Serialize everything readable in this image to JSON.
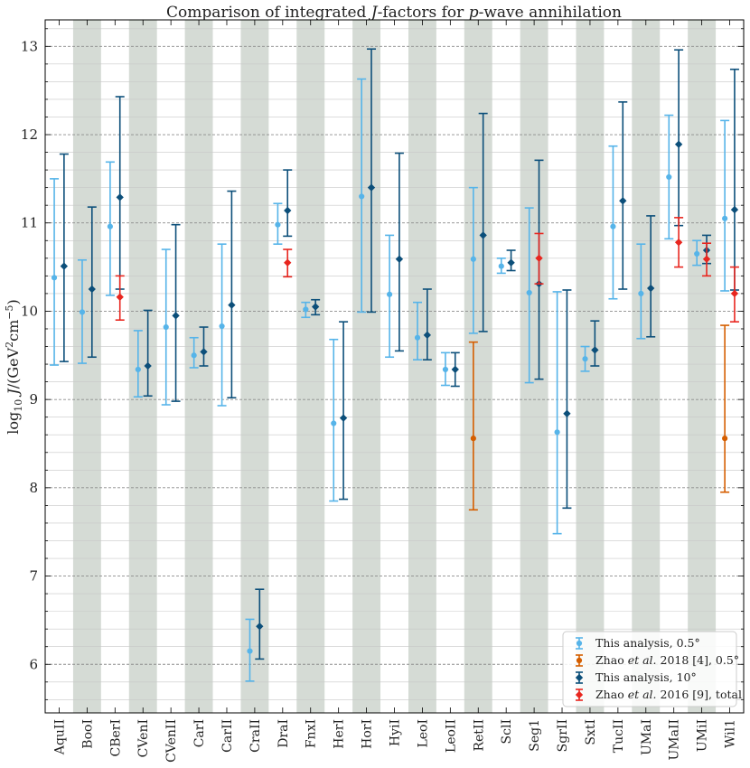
{
  "chart_data": {
    "type": "errorbar",
    "title": "Comparison of integrated J-factors for p-wave annihilation",
    "ylabel": "log10 J/(GeV^2 cm^-5)",
    "xlabel": "",
    "ylim": [
      5.45,
      13.3
    ],
    "yticks": [
      6,
      7,
      8,
      9,
      10,
      11,
      12,
      13
    ],
    "grid": true,
    "legend_position": "bottom-right",
    "categories": [
      "AquII",
      "BooI",
      "CBerI",
      "CVenI",
      "CVenII",
      "CarI",
      "CarII",
      "CraII",
      "DraI",
      "FnxI",
      "HerI",
      "HorI",
      "HyiI",
      "LeoI",
      "LeoII",
      "RetII",
      "SclI",
      "Seg1",
      "SgrII",
      "SxtI",
      "TucII",
      "UMaI",
      "UMaII",
      "UMiI",
      "Wil1"
    ],
    "series": [
      {
        "name": "This analysis, 0.5°",
        "color": "#56b4e9",
        "marker": "circle",
        "points": [
          {
            "x": "AquII",
            "y": 10.38,
            "lo": 9.39,
            "hi": 11.5
          },
          {
            "x": "BooI",
            "y": 9.99,
            "lo": 9.41,
            "hi": 10.58
          },
          {
            "x": "CBerI",
            "y": 10.96,
            "lo": 10.18,
            "hi": 11.69
          },
          {
            "x": "CVenI",
            "y": 9.34,
            "lo": 9.03,
            "hi": 9.78
          },
          {
            "x": "CVenII",
            "y": 9.82,
            "lo": 8.94,
            "hi": 10.7
          },
          {
            "x": "CarI",
            "y": 9.5,
            "lo": 9.36,
            "hi": 9.7
          },
          {
            "x": "CarII",
            "y": 9.83,
            "lo": 8.93,
            "hi": 10.76
          },
          {
            "x": "CraII",
            "y": 6.15,
            "lo": 5.81,
            "hi": 6.51
          },
          {
            "x": "DraI",
            "y": 10.98,
            "lo": 10.76,
            "hi": 11.22
          },
          {
            "x": "FnxI",
            "y": 10.02,
            "lo": 9.93,
            "hi": 10.1
          },
          {
            "x": "HerI",
            "y": 8.73,
            "lo": 7.85,
            "hi": 9.68
          },
          {
            "x": "HorI",
            "y": 11.3,
            "lo": 9.99,
            "hi": 12.63
          },
          {
            "x": "HyiI",
            "y": 10.19,
            "lo": 9.48,
            "hi": 10.86
          },
          {
            "x": "LeoI",
            "y": 9.7,
            "lo": 9.45,
            "hi": 10.1
          },
          {
            "x": "LeoII",
            "y": 9.34,
            "lo": 9.16,
            "hi": 9.53
          },
          {
            "x": "RetII",
            "y": 10.59,
            "lo": 9.75,
            "hi": 11.4
          },
          {
            "x": "SclI",
            "y": 10.51,
            "lo": 10.43,
            "hi": 10.6
          },
          {
            "x": "Seg1",
            "y": 10.21,
            "lo": 9.19,
            "hi": 11.17
          },
          {
            "x": "SgrII",
            "y": 8.63,
            "lo": 7.48,
            "hi": 10.22
          },
          {
            "x": "SxtI",
            "y": 9.46,
            "lo": 9.32,
            "hi": 9.6
          },
          {
            "x": "TucII",
            "y": 10.96,
            "lo": 10.14,
            "hi": 11.87
          },
          {
            "x": "UMaI",
            "y": 10.2,
            "lo": 9.69,
            "hi": 10.76
          },
          {
            "x": "UMaII",
            "y": 11.52,
            "lo": 10.82,
            "hi": 12.22
          },
          {
            "x": "UMiI",
            "y": 10.65,
            "lo": 10.52,
            "hi": 10.8
          },
          {
            "x": "Wil1",
            "y": 11.05,
            "lo": 10.23,
            "hi": 12.16
          }
        ]
      },
      {
        "name": "Zhao et al. 2018 [4], 0.5°",
        "color": "#d55e00",
        "marker": "circle",
        "points": [
          {
            "x": "RetII",
            "y": 8.56,
            "lo": 7.75,
            "hi": 9.65
          },
          {
            "x": "Wil1",
            "y": 8.56,
            "lo": 7.95,
            "hi": 9.84
          }
        ]
      },
      {
        "name": "This analysis, 10°",
        "color": "#0c4f7a",
        "marker": "diamond",
        "points": [
          {
            "x": "AquII",
            "y": 10.51,
            "lo": 9.43,
            "hi": 11.78
          },
          {
            "x": "BooI",
            "y": 10.25,
            "lo": 9.48,
            "hi": 11.18
          },
          {
            "x": "CBerI",
            "y": 11.29,
            "lo": 10.25,
            "hi": 12.43
          },
          {
            "x": "CVenI",
            "y": 9.38,
            "lo": 9.04,
            "hi": 10.01
          },
          {
            "x": "CVenII",
            "y": 9.95,
            "lo": 8.98,
            "hi": 10.98
          },
          {
            "x": "CarI",
            "y": 9.54,
            "lo": 9.38,
            "hi": 9.82
          },
          {
            "x": "CarII",
            "y": 10.07,
            "lo": 9.02,
            "hi": 11.36
          },
          {
            "x": "CraII",
            "y": 6.43,
            "lo": 6.06,
            "hi": 6.85
          },
          {
            "x": "DraI",
            "y": 11.14,
            "lo": 10.85,
            "hi": 11.6
          },
          {
            "x": "FnxI",
            "y": 10.05,
            "lo": 9.96,
            "hi": 10.13
          },
          {
            "x": "HerI",
            "y": 8.79,
            "lo": 7.87,
            "hi": 9.88
          },
          {
            "x": "HorI",
            "y": 11.4,
            "lo": 9.99,
            "hi": 12.97
          },
          {
            "x": "HyiI",
            "y": 10.59,
            "lo": 9.55,
            "hi": 11.79
          },
          {
            "x": "LeoI",
            "y": 9.73,
            "lo": 9.45,
            "hi": 10.25
          },
          {
            "x": "LeoII",
            "y": 9.34,
            "lo": 9.15,
            "hi": 9.53
          },
          {
            "x": "RetII",
            "y": 10.86,
            "lo": 9.77,
            "hi": 12.24
          },
          {
            "x": "SclI",
            "y": 10.55,
            "lo": 10.46,
            "hi": 10.69
          },
          {
            "x": "Seg1",
            "y": 10.31,
            "lo": 9.23,
            "hi": 11.71
          },
          {
            "x": "SgrII",
            "y": 8.84,
            "lo": 7.77,
            "hi": 10.24
          },
          {
            "x": "SxtI",
            "y": 9.56,
            "lo": 9.38,
            "hi": 9.89
          },
          {
            "x": "TucII",
            "y": 11.25,
            "lo": 10.25,
            "hi": 12.37
          },
          {
            "x": "UMaI",
            "y": 10.26,
            "lo": 9.71,
            "hi": 11.08
          },
          {
            "x": "UMaII",
            "y": 11.89,
            "lo": 10.97,
            "hi": 12.96
          },
          {
            "x": "UMiI",
            "y": 10.69,
            "lo": 10.54,
            "hi": 10.86
          },
          {
            "x": "Wil1",
            "y": 11.15,
            "lo": 10.24,
            "hi": 12.74
          }
        ]
      },
      {
        "name": "Zhao et al. 2016 [9], total",
        "color": "#e8261f",
        "marker": "diamond",
        "points": [
          {
            "x": "CBerI",
            "y": 10.16,
            "lo": 9.9,
            "hi": 10.4
          },
          {
            "x": "DraI",
            "y": 10.55,
            "lo": 10.39,
            "hi": 10.7
          },
          {
            "x": "Seg1",
            "y": 10.6,
            "lo": 10.31,
            "hi": 10.88
          },
          {
            "x": "UMaII",
            "y": 10.78,
            "lo": 10.5,
            "hi": 11.06
          },
          {
            "x": "UMiI",
            "y": 10.59,
            "lo": 10.4,
            "hi": 10.77
          },
          {
            "x": "Wil1",
            "y": 10.2,
            "lo": 9.88,
            "hi": 10.5
          }
        ]
      }
    ],
    "legend": [
      {
        "label": "This analysis, 0.5°"
      },
      {
        "prefix": "Zhao ",
        "italic": "et al.",
        "suffix": " 2018 [4], 0.5°"
      },
      {
        "label": "This analysis, 10°"
      },
      {
        "prefix": "Zhao ",
        "italic": "et al.",
        "suffix": " 2016 [9], total"
      }
    ],
    "shade_color": "#d5dbd5"
  }
}
